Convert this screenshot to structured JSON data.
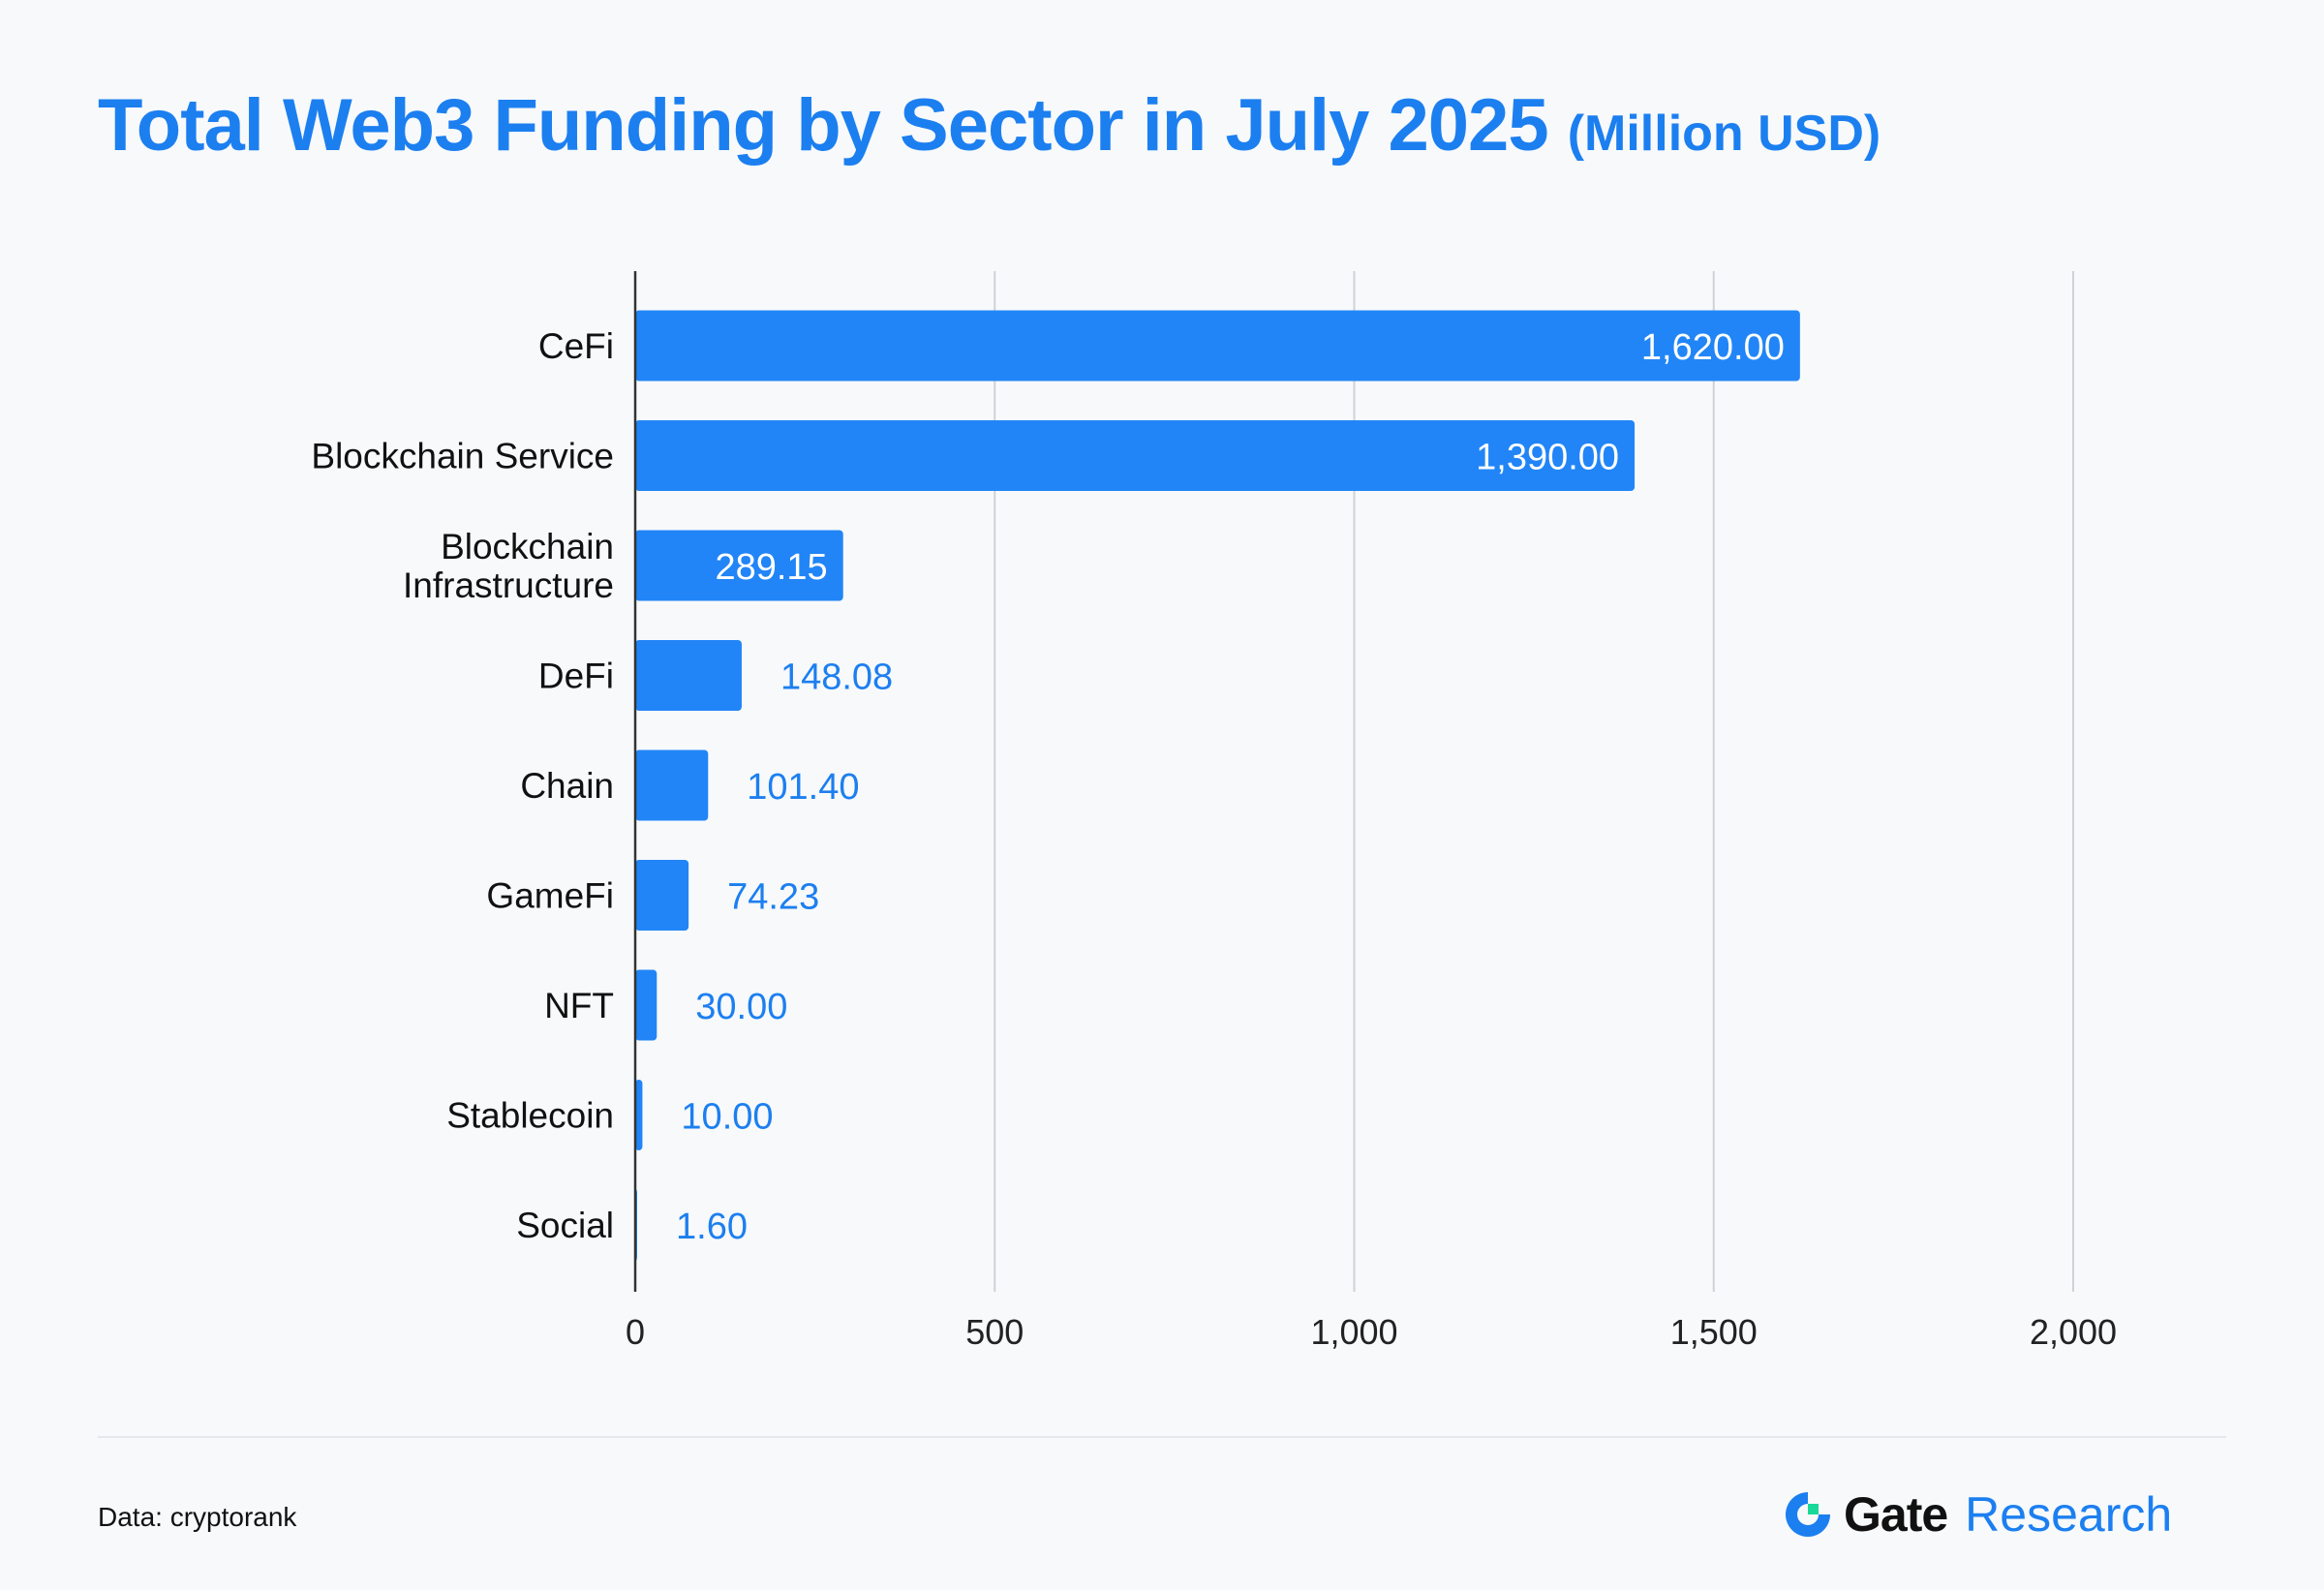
{
  "title": {
    "main": "Total Web3 Funding by Sector in July 2025",
    "unit": "(Million USD)"
  },
  "source": "Data: cryptorank",
  "brand": {
    "name": "Gate",
    "suffix": "Research"
  },
  "colors": {
    "accent": "#1c7ff0",
    "bar": "#2185f7",
    "logo_green": "#19d89a"
  },
  "chart_data": {
    "type": "bar",
    "orientation": "horizontal",
    "title": "Total Web3 Funding by Sector in July 2025 (Million USD)",
    "categories": [
      "CeFi",
      "Blockchain Service",
      "Blockchain Infrastructure",
      "DeFi",
      "Chain",
      "GameFi",
      "NFT",
      "Stablecoin",
      "Social"
    ],
    "category_lines": [
      [
        "CeFi"
      ],
      [
        "Blockchain Service"
      ],
      [
        "Blockchain",
        "Infrastructure"
      ],
      [
        "DeFi"
      ],
      [
        "Chain"
      ],
      [
        "GameFi"
      ],
      [
        "NFT"
      ],
      [
        "Stablecoin"
      ],
      [
        "Social"
      ]
    ],
    "values": [
      1620.0,
      1390.0,
      289.15,
      148.08,
      101.4,
      74.23,
      30.0,
      10.0,
      1.6
    ],
    "data_labels": [
      "1,620.00",
      "1,390.00",
      "289.15",
      "148.08",
      "101.40",
      "74.23",
      "30.00",
      "10.00",
      "1.60"
    ],
    "xlim": [
      0,
      2000
    ],
    "x_ticks": [
      0,
      500,
      1000,
      1500,
      2000
    ],
    "x_tick_labels": [
      "0",
      "500",
      "1,000",
      "1,500",
      "2,000"
    ],
    "grid": "vertical",
    "legend": "none"
  }
}
